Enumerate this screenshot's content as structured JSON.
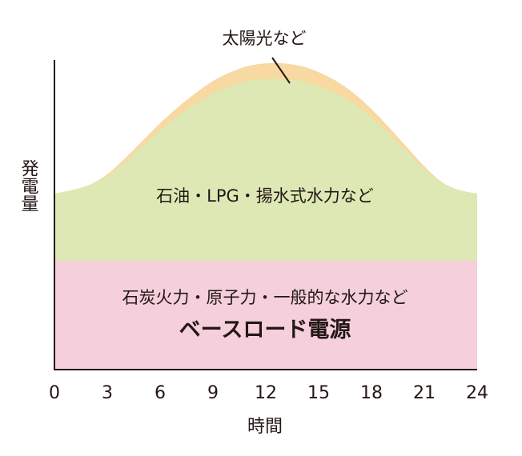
{
  "chart_data": {
    "type": "area",
    "xlabel": "時間",
    "ylabel": "発電量",
    "xlim": [
      0,
      24
    ],
    "x_ticks": [
      "0",
      "3",
      "6",
      "9",
      "12",
      "15",
      "18",
      "21",
      "24"
    ],
    "grid": false,
    "series": [
      {
        "name": "石炭火力・原子力・一般的な水力など",
        "color": "#f5cfdc",
        "x": [
          0,
          3,
          6,
          9,
          12,
          15,
          18,
          21,
          24
        ],
        "values": [
          62,
          62,
          62,
          62,
          62,
          62,
          62,
          62,
          62
        ]
      },
      {
        "name": "石油・LPG・揚水式水力など",
        "color": "#dde8b4",
        "x": [
          0,
          1,
          2,
          3,
          4,
          5,
          6,
          7,
          8,
          9,
          10,
          11,
          12,
          13,
          14,
          15,
          16,
          17,
          18,
          19,
          20,
          21,
          22,
          23,
          24
        ],
        "values": [
          38,
          40,
          43,
          48,
          56,
          65,
          74,
          82,
          89,
          95,
          99,
          102,
          103,
          103,
          102,
          99,
          95,
          89,
          81,
          72,
          62,
          52,
          44,
          40,
          38
        ]
      },
      {
        "name": "太陽光など",
        "color": "#f7d9a1",
        "x": [
          0,
          1,
          2,
          3,
          4,
          5,
          6,
          7,
          8,
          9,
          10,
          11,
          12,
          13,
          14,
          15,
          16,
          17,
          18,
          19,
          20,
          21,
          22,
          23,
          24
        ],
        "values": [
          0,
          0,
          0,
          1,
          2,
          3,
          4,
          5,
          6,
          7,
          8,
          8.5,
          9,
          9,
          8.5,
          8,
          7,
          6,
          5,
          3.5,
          2.5,
          1.5,
          0.5,
          0,
          0
        ]
      }
    ],
    "labels": {
      "solar": "太陽光など",
      "middle": "石油・LPG・揚水式水力など",
      "base": "石炭火力・原子力・一般的な水力など",
      "base_title": "ベースロード電源"
    },
    "colors": {
      "base_title": "#e8414f",
      "axis": "#231815",
      "text": "#231815"
    }
  }
}
